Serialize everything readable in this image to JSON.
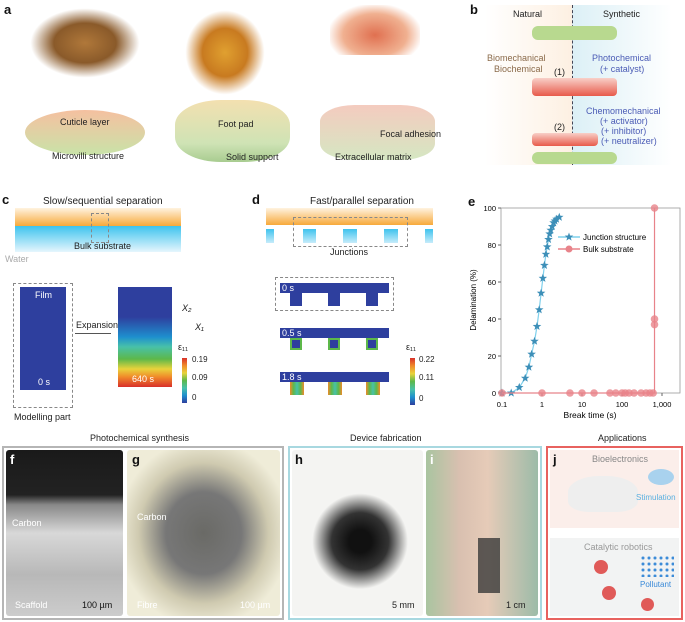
{
  "panel_a": {
    "label": "a",
    "cuticle": "Cuticle layer",
    "microvilli": "Microvilli structure",
    "foot_pad": "Foot pad",
    "solid_support": "Solid support",
    "focal_adhesion": "Focal adhesion",
    "ecm": "Extracellular matrix"
  },
  "panel_b": {
    "label": "b",
    "natural": "Natural",
    "synthetic": "Synthetic",
    "bio1": "Biomechanical",
    "bio2": "Biochemical",
    "photo": "Photochemical",
    "catalyst": "(+ catalyst)",
    "chemo": "Chemomechanical",
    "activator": "(+ activator)",
    "inhibitor": "(+ inhibitor)",
    "neutralizer": "(+ neutralizer)",
    "step1": "(1)",
    "step2": "(2)"
  },
  "panel_c": {
    "label": "c",
    "title": "Slow/sequential separation",
    "bulk": "Bulk substrate",
    "water": "Water",
    "film": "Film",
    "t0": "0 s",
    "expansion": "Expansion",
    "t640": "640 s",
    "modelling": "Modelling part",
    "x2": "X₂",
    "x1": "X₁",
    "eps": "ε₁₁",
    "scale": [
      "0.19",
      "0.09",
      "0"
    ]
  },
  "panel_d": {
    "label": "d",
    "title": "Fast/parallel separation",
    "junctions": "Junctions",
    "times": [
      "0 s",
      "0.5 s",
      "1.8 s"
    ],
    "eps": "ε₁₁",
    "scale": [
      "0.22",
      "0.11",
      "0"
    ]
  },
  "chart_data": {
    "label": "e",
    "type": "scatter",
    "xlabel": "Break time (s)",
    "ylabel": "Delamination (%)",
    "xscale": "log",
    "xlim": [
      0.1,
      2000
    ],
    "ylim": [
      0,
      100
    ],
    "xticks": [
      "0.1",
      "1",
      "10",
      "100",
      "1,000"
    ],
    "yticks": [
      "0",
      "20",
      "40",
      "60",
      "80",
      "100"
    ],
    "legend_position": "top-right",
    "series": [
      {
        "name": "Junction structure",
        "color": "#3d8fb8",
        "marker": "star",
        "x": [
          0.1,
          0.17,
          0.27,
          0.38,
          0.47,
          0.55,
          0.65,
          0.75,
          0.85,
          0.95,
          1.05,
          1.15,
          1.25,
          1.35,
          1.45,
          1.55,
          1.65,
          1.8,
          1.95,
          2.1,
          2.3,
          2.7
        ],
        "y": [
          0,
          0,
          3,
          8,
          14,
          21,
          28,
          36,
          45,
          54,
          62,
          69,
          75,
          79,
          83,
          86,
          88,
          90,
          92,
          93,
          94,
          95
        ]
      },
      {
        "name": "Bulk substrate",
        "color": "#e8838a",
        "marker": "circle",
        "x": [
          0.1,
          1,
          5,
          10,
          20,
          50,
          70,
          100,
          120,
          150,
          200,
          300,
          400,
          500,
          600,
          650,
          650,
          650
        ],
        "y": [
          0,
          0,
          0,
          0,
          0,
          0,
          0,
          0,
          0,
          0,
          0,
          0,
          0,
          0,
          0,
          37,
          40,
          100
        ]
      }
    ]
  },
  "bottom": {
    "photochem": "Photochemical synthesis",
    "device": "Device fabrication",
    "applications": "Applications",
    "f": {
      "label": "f",
      "carbon": "Carbon",
      "scaffold": "Scaffold",
      "scale": "100 µm"
    },
    "g": {
      "label": "g",
      "carbon": "Carbon",
      "fibre": "Fibre",
      "scale": "100 µm"
    },
    "h": {
      "label": "h",
      "scale": "5 mm"
    },
    "i": {
      "label": "i",
      "scale": "1 cm"
    },
    "j": {
      "label": "j",
      "bio": "Bioelectronics",
      "stim": "Stimulation",
      "cat": "Catalytic robotics",
      "poll": "Pollutant"
    }
  },
  "colors": {
    "junction": "#3d8fb8",
    "bulk": "#e8838a",
    "fem_blue": "#2e3f9e",
    "frame_grey": "#b5b5b5",
    "frame_cyan": "#a8d8e0",
    "frame_red": "#e8625f"
  }
}
